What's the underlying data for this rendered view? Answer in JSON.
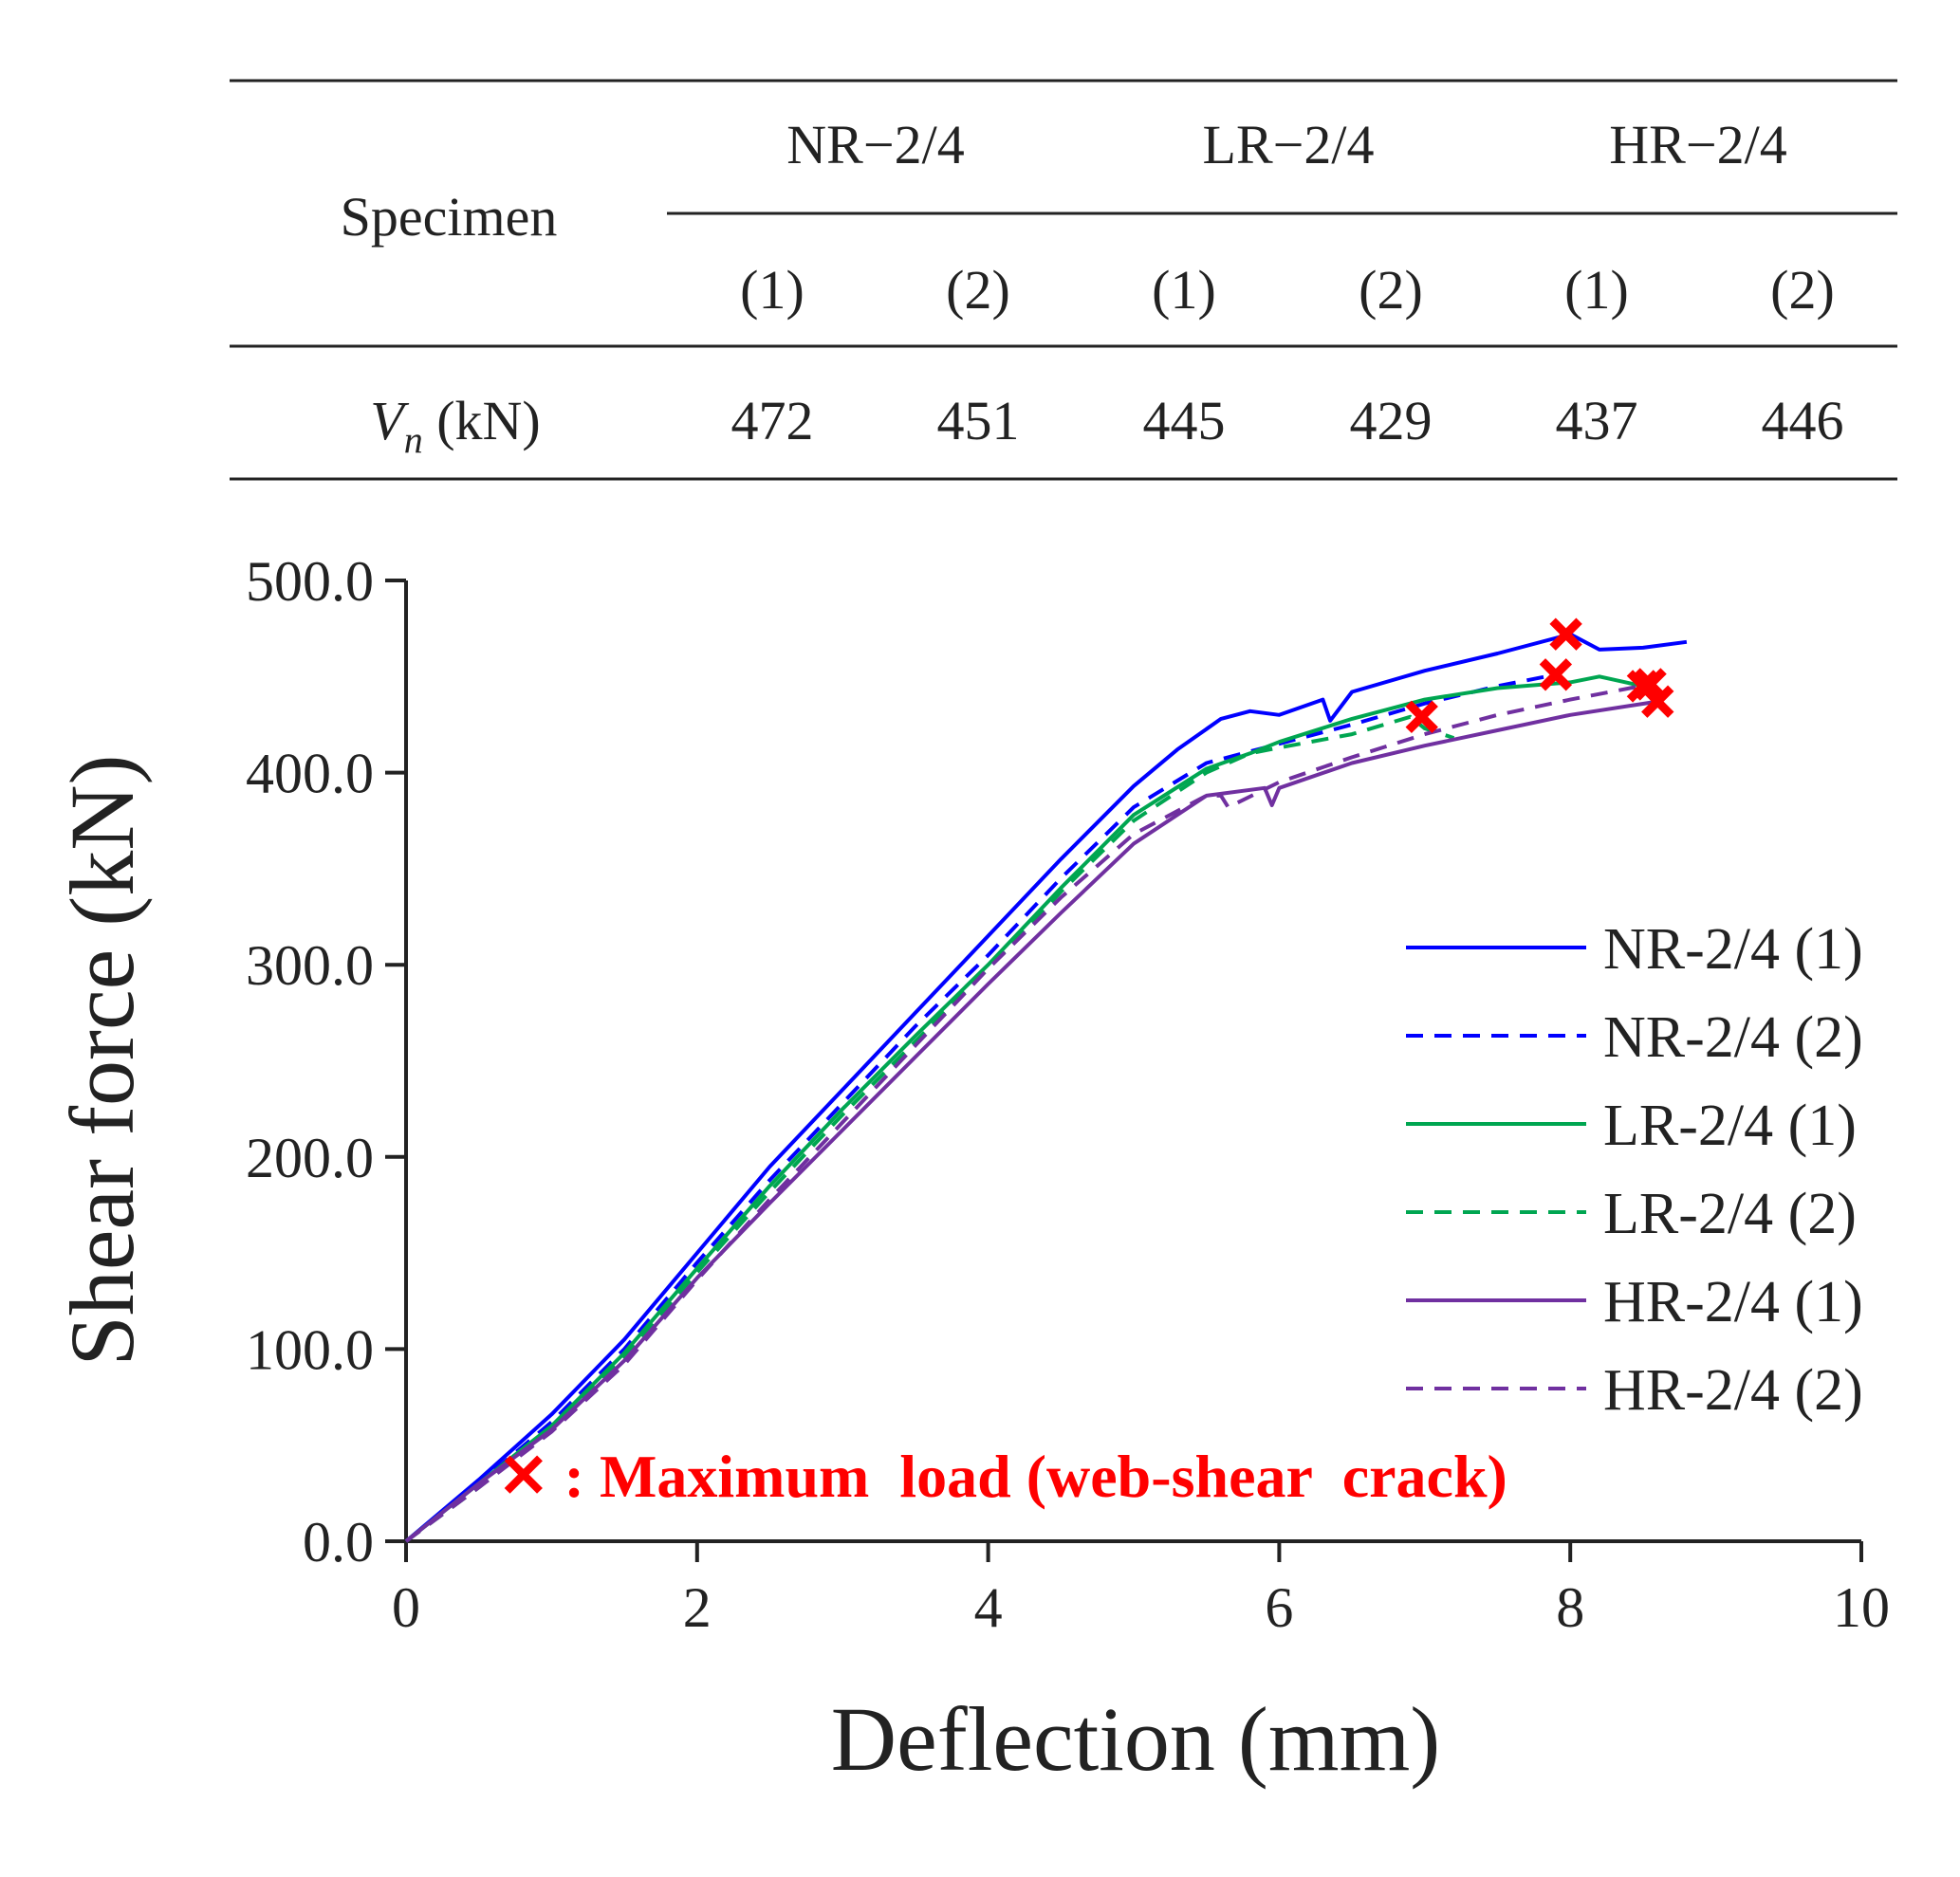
{
  "table": {
    "row_header": "Specimen",
    "groups": [
      "NR−2/4",
      "LR−2/4",
      "HR−2/4"
    ],
    "subheaders": [
      "(1)",
      "(2)",
      "(1)",
      "(2)",
      "(1)",
      "(2)"
    ],
    "value_label_symbol": "V",
    "value_label_sub": "n",
    "value_label_unit": " (kN)",
    "values": [
      "472",
      "451",
      "445",
      "429",
      "437",
      "446"
    ]
  },
  "chart_data": {
    "type": "line",
    "title": "",
    "xlabel": "Deflection (mm)",
    "ylabel": "Shear force (kN)",
    "xlim": [
      0,
      10
    ],
    "ylim": [
      0,
      500
    ],
    "xticks": [
      0,
      2,
      4,
      6,
      8,
      10
    ],
    "xtick_labels": [
      "0",
      "2",
      "4",
      "6",
      "8",
      "10"
    ],
    "yticks": [
      0,
      100,
      200,
      300,
      400,
      500
    ],
    "ytick_labels": [
      "0.0",
      "100.0",
      "200.0",
      "300.0",
      "400.0",
      "500.0"
    ],
    "grid": false,
    "legend_position": "right",
    "annotation": "✕ : Maximum  load (web-shear  crack)",
    "marker_color": "#ff0000",
    "series": [
      {
        "name": "NR-2/4 (1)",
        "color": "#0000ff",
        "dash": "solid",
        "x": [
          0,
          0.5,
          1.0,
          1.5,
          2.0,
          2.5,
          3.0,
          3.5,
          4.0,
          4.5,
          5.0,
          5.3,
          5.6,
          5.8,
          6.0,
          6.3,
          6.35,
          6.5,
          7.0,
          7.5,
          8.0,
          8.2,
          8.5,
          8.8
        ],
        "y": [
          0,
          32,
          66,
          105,
          150,
          195,
          235,
          275,
          315,
          355,
          393,
          412,
          428,
          432,
          430,
          438,
          427,
          442,
          453,
          462,
          472,
          464,
          465,
          468
        ],
        "max": {
          "x": 7.97,
          "y": 472
        }
      },
      {
        "name": "NR-2/4 (2)",
        "color": "#0000ff",
        "dash": "dashed",
        "x": [
          0,
          0.5,
          1.0,
          1.5,
          2.0,
          2.5,
          3.0,
          3.5,
          4.0,
          4.5,
          5.0,
          5.5,
          5.8,
          6.0,
          6.5,
          7.0,
          7.5,
          7.9
        ],
        "y": [
          0,
          30,
          62,
          100,
          145,
          188,
          228,
          268,
          305,
          345,
          382,
          405,
          411,
          415,
          425,
          436,
          445,
          451
        ],
        "max": {
          "x": 7.9,
          "y": 451
        }
      },
      {
        "name": "LR-2/4 (1)",
        "color": "#00a651",
        "dash": "solid",
        "x": [
          0,
          0.5,
          1.0,
          1.5,
          2.0,
          2.5,
          3.0,
          3.5,
          4.0,
          4.5,
          5.0,
          5.5,
          5.8,
          6.0,
          6.5,
          7.0,
          7.5,
          8.0,
          8.2,
          8.5
        ],
        "y": [
          0,
          30,
          60,
          98,
          142,
          185,
          225,
          263,
          300,
          340,
          378,
          402,
          410,
          416,
          428,
          438,
          444,
          447,
          450,
          445
        ],
        "max": {
          "x": 8.5,
          "y": 445
        }
      },
      {
        "name": "LR-2/4 (2)",
        "color": "#00a651",
        "dash": "dashed",
        "x": [
          0,
          0.5,
          1.0,
          1.5,
          2.0,
          2.5,
          3.0,
          3.5,
          4.0,
          4.5,
          5.0,
          5.5,
          5.8,
          6.0,
          6.5,
          6.9,
          7.0,
          7.2
        ],
        "y": [
          0,
          28,
          58,
          96,
          140,
          182,
          222,
          260,
          298,
          338,
          375,
          400,
          410,
          413,
          420,
          429,
          423,
          418
        ],
        "max": {
          "x": 6.98,
          "y": 429
        }
      },
      {
        "name": "HR-2/4 (1)",
        "color": "#7030a0",
        "dash": "solid",
        "x": [
          0,
          0.5,
          1.0,
          1.5,
          2.0,
          2.5,
          3.0,
          3.5,
          4.0,
          4.5,
          5.0,
          5.5,
          5.9,
          5.95,
          6.0,
          6.5,
          7.0,
          7.5,
          8.0,
          8.6
        ],
        "y": [
          0,
          30,
          58,
          94,
          137,
          176,
          214,
          252,
          290,
          327,
          363,
          388,
          392,
          383,
          392,
          405,
          414,
          422,
          430,
          437
        ],
        "max": {
          "x": 8.6,
          "y": 437
        }
      },
      {
        "name": "HR-2/4 (2)",
        "color": "#7030a0",
        "dash": "dashed",
        "x": [
          0,
          0.5,
          1.0,
          1.5,
          2.0,
          2.5,
          3.0,
          3.5,
          4.0,
          4.5,
          5.0,
          5.5,
          5.6,
          5.65,
          6.0,
          6.5,
          7.0,
          7.5,
          8.0,
          8.55
        ],
        "y": [
          0,
          28,
          57,
          92,
          136,
          178,
          218,
          258,
          298,
          335,
          368,
          388,
          388,
          382,
          395,
          408,
          420,
          430,
          438,
          446
        ],
        "max": {
          "x": 8.55,
          "y": 446
        }
      }
    ]
  }
}
